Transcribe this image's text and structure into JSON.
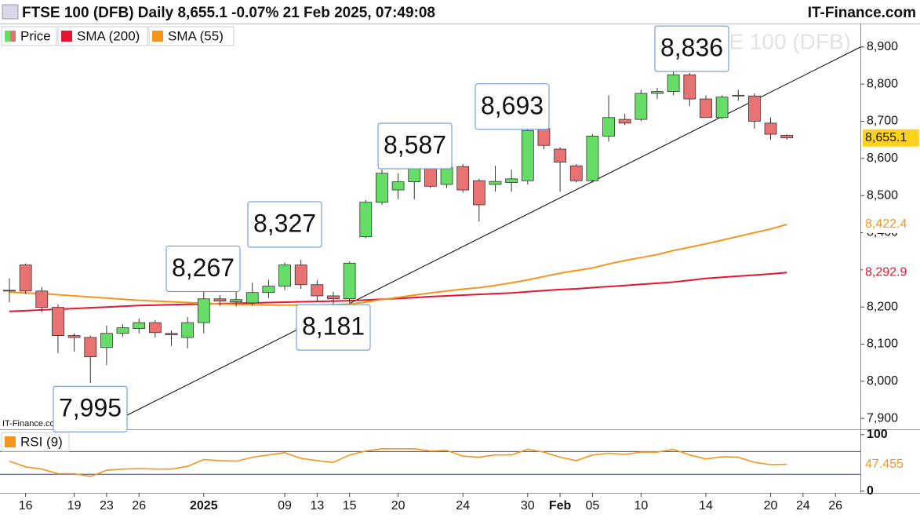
{
  "header": {
    "title": "FTSE 100 (DFB) Daily 8,655.1 -0.07% 21 Feb 2025, 07:49:08",
    "brand": "IT-Finance.com"
  },
  "chart_data": [
    {
      "type": "candlestick",
      "watermark": "FTSE 100 (DFB)",
      "source": "IT-Finance.com",
      "categories": [
        null,
        "16",
        null,
        null,
        "19",
        null,
        "23",
        null,
        "26",
        null,
        null,
        null,
        "2025",
        null,
        null,
        null,
        null,
        "09",
        null,
        "13",
        null,
        "15",
        null,
        null,
        "20",
        null,
        null,
        null,
        "24",
        null,
        null,
        null,
        "30",
        null,
        "Feb",
        null,
        "05",
        null,
        null,
        "10",
        null,
        null,
        null,
        "14",
        null,
        null,
        null,
        "20",
        null,
        "24",
        null,
        "26"
      ],
      "price": {
        "name": "Price",
        "up_color": "#66dd66",
        "down_color": "#e87272",
        "open": [
          8245,
          8313,
          8243,
          8199,
          8123,
          8118,
          8091,
          8129,
          8142,
          8158,
          8129,
          8118,
          8158,
          8222,
          8214,
          8211,
          8239,
          8256,
          8313,
          8260,
          8230,
          8222,
          8389,
          8482,
          8515,
          8537,
          8575,
          8530,
          8578,
          8540,
          8530,
          8535,
          8540,
          8680,
          8625,
          8580,
          8540,
          8660,
          8705,
          8705,
          8775,
          8780,
          8825,
          8760,
          8710,
          8770,
          8768,
          8695,
          8662,
          null,
          null,
          null
        ],
        "high": [
          8277,
          8317,
          8254,
          8207,
          8129,
          8123,
          8150,
          8154,
          8169,
          8165,
          8137,
          8173,
          8267,
          8232,
          8245,
          8266,
          8273,
          8320,
          8327,
          8273,
          8241,
          8322,
          8488,
          8570,
          8560,
          8587,
          8580,
          8580,
          8585,
          8545,
          8580,
          8570,
          8678,
          8693,
          8630,
          8585,
          8665,
          8770,
          8720,
          8785,
          8790,
          8836,
          8830,
          8770,
          8770,
          8785,
          8775,
          8710,
          8665,
          null,
          null,
          null
        ],
        "low": [
          8213,
          8235,
          8186,
          8076,
          8080,
          7995,
          8044,
          8120,
          8129,
          8118,
          8095,
          8089,
          8129,
          8203,
          8201,
          8203,
          8224,
          8245,
          8249,
          8213,
          8181,
          8211,
          8385,
          8475,
          8490,
          8490,
          8520,
          8520,
          8508,
          8430,
          8510,
          8510,
          8530,
          8625,
          8510,
          8535,
          8535,
          8645,
          8690,
          8700,
          8760,
          8770,
          8740,
          8710,
          8705,
          8755,
          8680,
          8650,
          8650,
          null,
          null,
          null
        ],
        "close": [
          8243,
          8243,
          8199,
          8123,
          8118,
          8066,
          8129,
          8144,
          8158,
          8131,
          8125,
          8158,
          8222,
          8216,
          8220,
          8239,
          8256,
          8313,
          8260,
          8230,
          8222,
          8318,
          8482,
          8560,
          8537,
          8575,
          8525,
          8575,
          8515,
          8475,
          8538,
          8545,
          8675,
          8635,
          8590,
          8540,
          8660,
          8710,
          8695,
          8775,
          8780,
          8825,
          8760,
          8710,
          8765,
          8770,
          8700,
          8665,
          8655.1,
          null,
          null,
          null
        ],
        "value_labels": [
          null,
          null,
          null,
          null,
          null,
          null,
          null,
          null,
          null,
          null,
          null,
          null,
          null,
          null,
          null,
          null,
          null,
          null,
          null,
          null,
          null,
          null,
          null,
          null,
          null,
          null,
          null,
          null,
          null,
          null,
          null,
          null,
          null,
          null,
          null,
          null,
          null,
          null,
          null,
          null,
          null,
          null,
          null,
          null,
          null,
          null,
          null,
          null,
          "8,655.1",
          null,
          null,
          null
        ]
      },
      "series": [
        {
          "name": "SMA (200)",
          "color": "#e8142d",
          "values": [
            8188,
            8190,
            8192,
            8194,
            8196,
            8198,
            8200,
            8202,
            8204,
            8205,
            8206,
            8207,
            8208,
            8209,
            8210,
            8211,
            8212,
            8213,
            8214,
            8215,
            8216,
            8217,
            8219,
            8221,
            8223,
            8225,
            8228,
            8230,
            8232,
            8234,
            8236,
            8238,
            8241,
            8244,
            8247,
            8249,
            8252,
            8255,
            8258,
            8261,
            8264,
            8267,
            8272,
            8277,
            8280,
            8283,
            8286,
            8289,
            8292.9,
            null,
            null,
            null
          ],
          "value_labels": [
            null,
            null,
            null,
            null,
            null,
            null,
            null,
            null,
            null,
            null,
            null,
            null,
            null,
            null,
            null,
            null,
            null,
            null,
            null,
            null,
            null,
            null,
            null,
            null,
            null,
            null,
            null,
            null,
            null,
            null,
            null,
            null,
            null,
            null,
            null,
            null,
            null,
            null,
            null,
            null,
            null,
            null,
            null,
            null,
            null,
            null,
            null,
            null,
            "8,292.9",
            null,
            null,
            null
          ]
        },
        {
          "name": "SMA (55)",
          "color": "#f7941d",
          "values": [
            8240,
            8238,
            8236,
            8233,
            8230,
            8227,
            8224,
            8221,
            8218,
            8216,
            8214,
            8212,
            8210,
            8208,
            8207,
            8206,
            8205,
            8205,
            8205,
            8205,
            8206,
            8208,
            8213,
            8220,
            8226,
            8232,
            8238,
            8243,
            8248,
            8252,
            8258,
            8265,
            8273,
            8282,
            8291,
            8298,
            8305,
            8316,
            8325,
            8333,
            8341,
            8352,
            8361,
            8370,
            8380,
            8390,
            8400,
            8410,
            8422.4,
            null,
            null,
            null
          ],
          "value_labels": [
            null,
            null,
            null,
            null,
            null,
            null,
            null,
            null,
            null,
            null,
            null,
            null,
            null,
            null,
            null,
            null,
            null,
            null,
            null,
            null,
            null,
            null,
            null,
            null,
            null,
            null,
            null,
            null,
            null,
            null,
            null,
            null,
            null,
            null,
            null,
            null,
            null,
            null,
            null,
            null,
            null,
            null,
            null,
            null,
            null,
            null,
            null,
            null,
            "8,422.4",
            null,
            null,
            null
          ]
        }
      ],
      "annotations": [
        {
          "value": 7995,
          "label": "7,995"
        },
        {
          "value": 8267,
          "label": "8,267"
        },
        {
          "value": 8327,
          "label": "8,327"
        },
        {
          "value": 8181,
          "label": "8,181"
        },
        {
          "value": 8587,
          "label": "8,587"
        },
        {
          "value": 8693,
          "label": "8,693"
        },
        {
          "value": 8836,
          "label": "8,836"
        }
      ],
      "ylim": [
        7875,
        8963
      ],
      "yticks": [
        {
          "value": 7900,
          "label": "7,900"
        },
        {
          "value": 8000,
          "label": "8,000"
        },
        {
          "value": 8100,
          "label": "8,100"
        },
        {
          "value": 8200,
          "label": "8,200"
        },
        {
          "value": 8300,
          "label": "8,300"
        },
        {
          "value": 8400,
          "label": "8,400"
        },
        {
          "value": 8500,
          "label": "8,500"
        },
        {
          "value": 8600,
          "label": "8,600"
        },
        {
          "value": 8700,
          "label": "8,700"
        },
        {
          "value": 8800,
          "label": "8,800"
        },
        {
          "value": 8900,
          "label": "8,900"
        }
      ]
    },
    {
      "type": "line",
      "series": [
        {
          "name": "RSI (9)",
          "color": "#f7941d",
          "values": [
            53,
            43,
            39,
            31,
            31,
            26,
            37,
            39,
            40,
            39,
            39,
            44,
            56,
            54,
            53,
            60,
            64,
            68,
            58,
            54,
            51,
            64,
            71,
            75,
            75,
            75,
            71,
            72,
            62,
            60,
            64,
            64,
            74,
            69,
            60,
            54,
            64,
            67,
            65,
            69,
            69,
            74,
            64,
            57,
            61,
            60,
            51,
            47,
            47.455,
            null,
            null,
            null
          ],
          "value_labels": [
            null,
            null,
            null,
            null,
            null,
            null,
            null,
            null,
            null,
            null,
            null,
            null,
            null,
            null,
            null,
            null,
            null,
            null,
            null,
            null,
            null,
            null,
            null,
            null,
            null,
            null,
            null,
            null,
            null,
            null,
            null,
            null,
            null,
            null,
            null,
            null,
            null,
            null,
            null,
            null,
            null,
            null,
            null,
            null,
            null,
            null,
            null,
            null,
            "47.455",
            null,
            null,
            null
          ]
        }
      ],
      "levels": [
        70,
        30
      ],
      "ylim": [
        -3,
        108
      ],
      "yticks": [
        0,
        100
      ]
    }
  ]
}
